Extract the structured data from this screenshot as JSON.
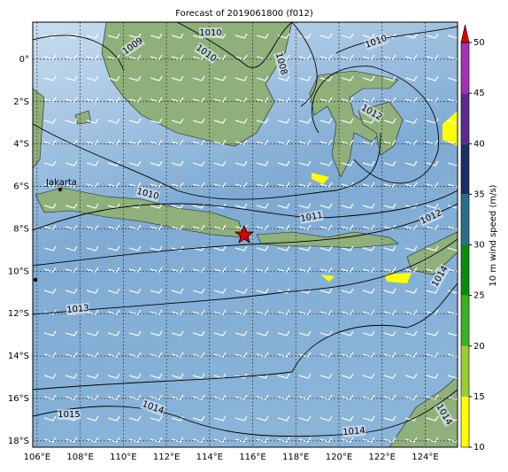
{
  "map": {
    "title": "Forecast of 2019061800 (f012)",
    "lonlim": [
      105.8,
      125.5
    ],
    "latlim": [
      -18.3,
      1.75
    ],
    "lonticks": [
      {
        "value": 106,
        "label": "106°E"
      },
      {
        "value": 108,
        "label": "108°E"
      },
      {
        "value": 110,
        "label": "110°E"
      },
      {
        "value": 112,
        "label": "112°E"
      },
      {
        "value": 114,
        "label": "114°E"
      },
      {
        "value": 116,
        "label": "116°E"
      },
      {
        "value": 118,
        "label": "118°E"
      },
      {
        "value": 120,
        "label": "120°E"
      },
      {
        "value": 122,
        "label": "122°E"
      },
      {
        "value": 124,
        "label": "124°E"
      }
    ],
    "latticks": [
      {
        "value": 0,
        "label": "0°"
      },
      {
        "value": -2,
        "label": "2°S"
      },
      {
        "value": -4,
        "label": "4°S"
      },
      {
        "value": -6,
        "label": "6°S"
      },
      {
        "value": -8,
        "label": "8°S"
      },
      {
        "value": -10,
        "label": "10°S"
      },
      {
        "value": -12,
        "label": "12°S"
      },
      {
        "value": -14,
        "label": "14°S"
      },
      {
        "value": -16,
        "label": "16°S"
      },
      {
        "value": -18,
        "label": "18°S"
      }
    ],
    "grid": true,
    "city": "Jakarta",
    "contour_labels": [
      1009,
      1010,
      1010,
      1008,
      1010,
      1012,
      1010,
      1011,
      1012,
      1014,
      1013,
      1014,
      1015,
      1014,
      1014
    ],
    "colorbar": {
      "label": "10 m wind speed (m/s)",
      "ticks": [
        10,
        15,
        20,
        25,
        30,
        35,
        40,
        45,
        50
      ],
      "colors": [
        "#ffff00",
        "#9acd32",
        "#3cb024",
        "#0a8c0a",
        "#2a6e8a",
        "#1c2e66",
        "#5b2a8c",
        "#a232b4"
      ],
      "extend_color": "#e00000"
    }
  }
}
